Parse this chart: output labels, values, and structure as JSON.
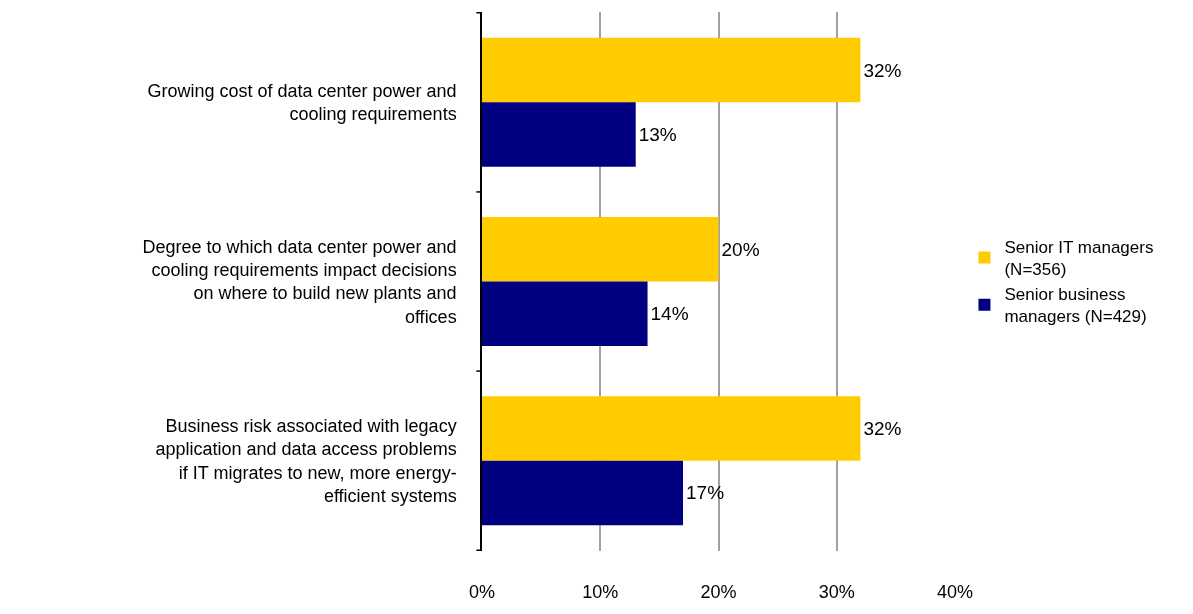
{
  "chart_data": {
    "type": "bar",
    "orientation": "horizontal",
    "categories": [
      "Growing cost of data center power and cooling requirements",
      "Degree to which data center power and cooling requirements impact decisions on where to build new plants and offices",
      "Business risk associated with legacy application and data access problems if IT migrates to new, more energy-efficient systems"
    ],
    "series": [
      {
        "name": "Senior IT managers (N=356)",
        "color": "#ffcc00",
        "values": [
          32,
          20,
          32
        ],
        "value_labels": [
          "32%",
          "20%",
          "32%"
        ]
      },
      {
        "name": "Senior business managers (N=429)",
        "color": "#000080",
        "values": [
          13,
          14,
          17
        ],
        "value_labels": [
          "13%",
          "14%",
          "17%"
        ]
      }
    ],
    "xlim": [
      0,
      40
    ],
    "xticks": [
      {
        "value": 0,
        "label": "0%"
      },
      {
        "value": 10,
        "label": "10%"
      },
      {
        "value": 20,
        "label": "20%"
      },
      {
        "value": 30,
        "label": "30%"
      },
      {
        "value": 40,
        "label": "40%"
      }
    ],
    "grid": "x",
    "legend": "right"
  }
}
